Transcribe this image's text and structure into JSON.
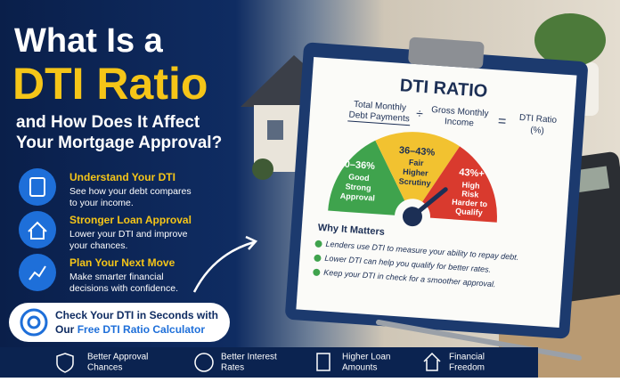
{
  "header": {
    "line1": "What Is a",
    "line2": "DTI Ratio",
    "line3": "and How Does It Affect",
    "line4": "Your Mortgage Approval?"
  },
  "features": [
    {
      "title": "Understand Your DTI",
      "desc": [
        "See how your debt compares",
        "to your income."
      ]
    },
    {
      "title": "Stronger Loan Approval",
      "desc": [
        "Lower your DTI and improve",
        "your chances."
      ]
    },
    {
      "title": "Plan Your Next Move",
      "desc": [
        "Make smarter financial",
        "decisions with confidence."
      ]
    }
  ],
  "cta": {
    "line1": "Check Your DTI in Seconds with",
    "prefix": "Our",
    "highlight": "Free DTI Ratio Calculator"
  },
  "clipboard": {
    "title": "DTI RATIO",
    "formula": {
      "numerator": [
        "Total Monthly",
        "Debt Payments"
      ],
      "operator": "÷",
      "denominator": [
        "Gross Monthly",
        "Income"
      ],
      "equals": "=",
      "result": [
        "DTI Ratio",
        "(%)"
      ]
    },
    "gauge": [
      {
        "range": "0–36%",
        "label": [
          "Good",
          "Strong",
          "Approval"
        ]
      },
      {
        "range": "36–43%",
        "label": [
          "Fair",
          "Higher",
          "Scrutiny"
        ]
      },
      {
        "range": "43%+",
        "label": [
          "High",
          "Risk",
          "Harder to",
          "Qualify"
        ]
      }
    ],
    "why_title": "Why It Matters",
    "why_points": [
      "Lenders use DTI to measure your ability to repay debt.",
      "Lower DTI can help you qualify for better rates.",
      "Keep your DTI in check for a smoother approval."
    ]
  },
  "benefits": [
    [
      "Better Approval",
      "Chances"
    ],
    [
      "Better Interest",
      "Rates"
    ],
    [
      "Higher Loan",
      "Amounts"
    ],
    [
      "Financial",
      "Freedom"
    ]
  ]
}
